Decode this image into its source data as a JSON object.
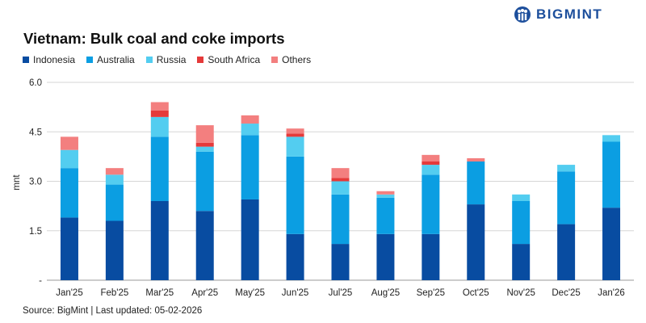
{
  "brand": {
    "name": "BIGMINT",
    "logo_color": "#1d4f9c"
  },
  "footer": {
    "source": "Source: BigMint | Last updated: 05-02-2026"
  },
  "chart_data": {
    "type": "bar",
    "stacked": true,
    "title": "Vietnam: Bulk coal and coke imports",
    "xlabel": "",
    "ylabel": "mnt",
    "ylim": [
      0,
      6
    ],
    "yticks": [
      {
        "value": 0,
        "label": "-"
      },
      {
        "value": 1.5,
        "label": "1.5"
      },
      {
        "value": 3,
        "label": "3.0"
      },
      {
        "value": 4.5,
        "label": "4.5"
      },
      {
        "value": 6,
        "label": "6.0"
      }
    ],
    "grid": true,
    "legend_position": "top-left",
    "categories": [
      "Jan'25",
      "Feb'25",
      "Mar'25",
      "Apr'25",
      "May'25",
      "Jun'25",
      "Jul'25",
      "Aug'25",
      "Sep'25",
      "Oct'25",
      "Nov'25",
      "Dec'25",
      "Jan'26"
    ],
    "series": [
      {
        "name": "Indonesia",
        "color": "#084ca1",
        "values": [
          1.9,
          1.8,
          2.4,
          2.1,
          2.45,
          1.4,
          1.1,
          1.4,
          1.4,
          2.3,
          1.1,
          1.7,
          2.2
        ]
      },
      {
        "name": "Australia",
        "color": "#0b9ee2",
        "values": [
          1.5,
          1.1,
          1.95,
          1.8,
          1.95,
          2.35,
          1.5,
          1.1,
          1.8,
          1.3,
          1.3,
          1.6,
          2.0
        ]
      },
      {
        "name": "Russia",
        "color": "#53cdf0",
        "values": [
          0.55,
          0.3,
          0.6,
          0.15,
          0.35,
          0.6,
          0.4,
          0.1,
          0.3,
          0.0,
          0.2,
          0.2,
          0.2
        ]
      },
      {
        "name": "South Africa",
        "color": "#e53a3a",
        "values": [
          0.0,
          0.0,
          0.2,
          0.12,
          0.0,
          0.1,
          0.1,
          0.0,
          0.1,
          0.0,
          0.0,
          0.0,
          0.0
        ]
      },
      {
        "name": "Others",
        "color": "#f37f7f",
        "values": [
          0.4,
          0.2,
          0.25,
          0.53,
          0.25,
          0.15,
          0.3,
          0.1,
          0.2,
          0.1,
          0.0,
          0.0,
          0.0
        ]
      }
    ]
  }
}
